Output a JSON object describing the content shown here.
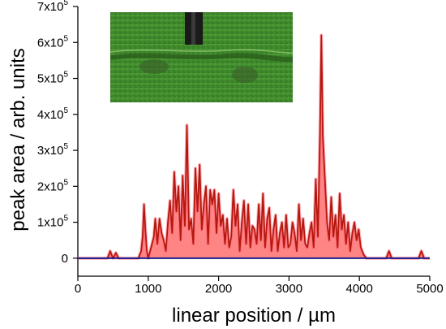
{
  "chart_data": {
    "type": "line",
    "xlabel": "linear position / µm",
    "ylabel": "peak area / arb. units",
    "xlim": [
      0,
      5000
    ],
    "ylim": [
      -50000,
      700000
    ],
    "x_ticks": [
      {
        "value": 0,
        "label": "0"
      },
      {
        "value": 1000,
        "label": "1000"
      },
      {
        "value": 2000,
        "label": "2000"
      },
      {
        "value": 3000,
        "label": "3000"
      },
      {
        "value": 4000,
        "label": "4000"
      },
      {
        "value": 5000,
        "label": "5000"
      }
    ],
    "y_ticks": [
      {
        "value": 0,
        "mantissa": "0",
        "exp": ""
      },
      {
        "value": 100000,
        "mantissa": "1x10",
        "exp": "5"
      },
      {
        "value": 200000,
        "mantissa": "2x10",
        "exp": "5"
      },
      {
        "value": 300000,
        "mantissa": "3x10",
        "exp": "5"
      },
      {
        "value": 400000,
        "mantissa": "4x10",
        "exp": "5"
      },
      {
        "value": 500000,
        "mantissa": "5x10",
        "exp": "5"
      },
      {
        "value": 600000,
        "mantissa": "6x10",
        "exp": "5"
      },
      {
        "value": 700000,
        "mantissa": "7x10",
        "exp": "5"
      }
    ],
    "series": [
      {
        "color": "#b5180e",
        "fill_color": "#ff2020",
        "x": [
          0,
          420,
          460,
          500,
          540,
          580,
          620,
          860,
          900,
          920,
          940,
          960,
          980,
          1000,
          1040,
          1080,
          1100,
          1130,
          1160,
          1190,
          1220,
          1250,
          1280,
          1310,
          1340,
          1370,
          1400,
          1430,
          1460,
          1490,
          1520,
          1550,
          1580,
          1610,
          1640,
          1670,
          1700,
          1730,
          1760,
          1790,
          1820,
          1850,
          1880,
          1910,
          1940,
          1970,
          2000,
          2030,
          2060,
          2090,
          2120,
          2150,
          2180,
          2210,
          2240,
          2270,
          2300,
          2330,
          2360,
          2390,
          2420,
          2450,
          2480,
          2510,
          2540,
          2570,
          2600,
          2630,
          2660,
          2690,
          2720,
          2750,
          2780,
          2810,
          2840,
          2870,
          2900,
          2930,
          2960,
          2990,
          3020,
          3050,
          3080,
          3110,
          3140,
          3170,
          3200,
          3230,
          3260,
          3290,
          3320,
          3350,
          3380,
          3410,
          3440,
          3460,
          3480,
          3510,
          3540,
          3570,
          3600,
          3630,
          3660,
          3690,
          3720,
          3750,
          3780,
          3810,
          3840,
          3870,
          3900,
          3930,
          3960,
          3990,
          4020,
          4060,
          4100,
          4380,
          4420,
          4460,
          4840,
          4880,
          4920,
          5000
        ],
        "y": [
          0,
          0,
          20000,
          0,
          15000,
          0,
          0,
          0,
          20000,
          60000,
          150000,
          80000,
          20000,
          0,
          30000,
          60000,
          110000,
          40000,
          110000,
          70000,
          50000,
          20000,
          100000,
          160000,
          70000,
          240000,
          130000,
          200000,
          50000,
          230000,
          90000,
          370000,
          80000,
          110000,
          40000,
          250000,
          130000,
          260000,
          80000,
          150000,
          200000,
          40000,
          190000,
          150000,
          190000,
          70000,
          180000,
          90000,
          120000,
          40000,
          110000,
          30000,
          60000,
          190000,
          90000,
          150000,
          20000,
          100000,
          160000,
          40000,
          150000,
          30000,
          90000,
          80000,
          40000,
          150000,
          50000,
          180000,
          30000,
          110000,
          140000,
          20000,
          80000,
          120000,
          20000,
          70000,
          100000,
          30000,
          120000,
          30000,
          40000,
          100000,
          70000,
          20000,
          150000,
          50000,
          110000,
          40000,
          30000,
          70000,
          100000,
          30000,
          220000,
          60000,
          350000,
          620000,
          340000,
          220000,
          100000,
          50000,
          170000,
          60000,
          120000,
          30000,
          180000,
          80000,
          120000,
          40000,
          100000,
          20000,
          70000,
          100000,
          50000,
          80000,
          30000,
          10000,
          0,
          0,
          20000,
          0,
          0,
          20000,
          0,
          0
        ]
      },
      {
        "color": "#1c1c8c",
        "x": [
          0,
          5000
        ],
        "y": [
          0,
          0
        ]
      }
    ]
  },
  "inset": {
    "description_colors": {
      "grass": "#3f8a2c",
      "grass_dark": "#2f6f22",
      "cable": "#1a1a1a"
    }
  }
}
